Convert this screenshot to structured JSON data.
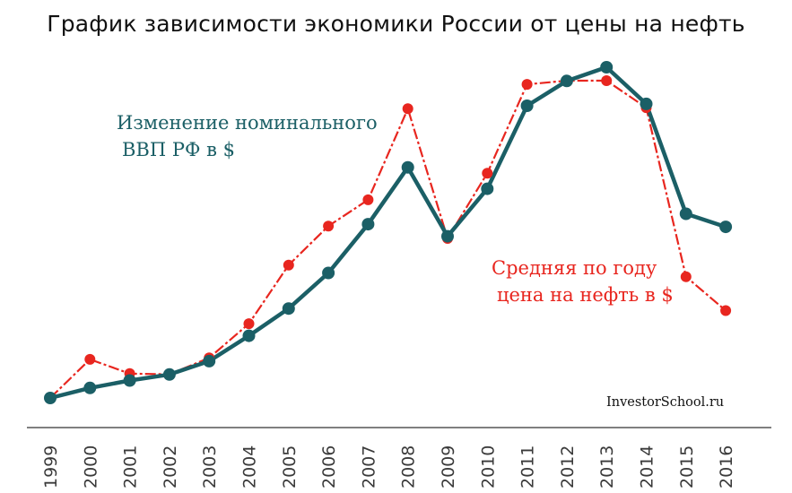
{
  "chart_data": {
    "type": "line",
    "title": "График зависимости экономики России от цены на нефть",
    "categories": [
      "1999",
      "2000",
      "2001",
      "2002",
      "2003",
      "2004",
      "2005",
      "2006",
      "2007",
      "2008",
      "2009",
      "2010",
      "2011",
      "2012",
      "2013",
      "2014",
      "2015",
      "2016"
    ],
    "series": [
      {
        "name": "Изменение номинального ВВП РФ в $",
        "color": "#1b5f66",
        "values": [
          196,
          260,
          307,
          345,
          430,
          591,
          764,
          990,
          1300,
          1661,
          1223,
          1525,
          2052,
          2210,
          2297,
          2064,
          1366,
          1283
        ]
      },
      {
        "name": "Средняя по году цена на нефть в $",
        "color": "#e8261f",
        "values": [
          17.9,
          28.5,
          24.6,
          24.4,
          28.9,
          38.3,
          54.4,
          65.1,
          72.3,
          97.3,
          61.7,
          79.6,
          104,
          105,
          105,
          97.6,
          51.2,
          41.9
        ]
      }
    ],
    "annotations": {
      "gdp": [
        "Изменение номинального",
        "ВВП РФ в $"
      ],
      "oil": [
        "Средняя по году",
        "цена на нефть в $"
      ]
    },
    "xlabel": "",
    "ylabel": "",
    "grid": false,
    "legend": "inline annotations"
  },
  "watermark": "InvestorSchool.ru"
}
